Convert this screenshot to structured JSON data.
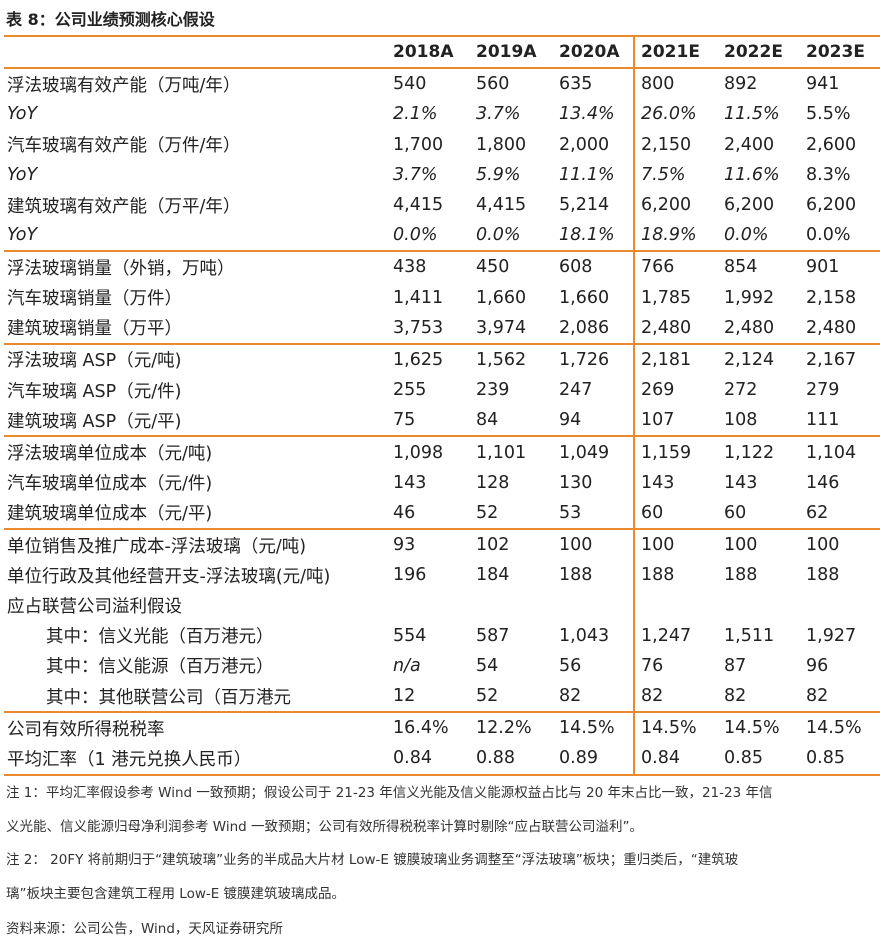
{
  "title": "表 8：公司业绩预测核心假设",
  "columns": [
    "2018A",
    "2019A",
    "2020A",
    "2021E",
    "2022E",
    "2023E"
  ],
  "rows": [
    {
      "label": "浮法玻璃有效产能（万吨/年）",
      "values": [
        "540",
        "560",
        "635",
        "800",
        "892",
        "941"
      ]
    },
    {
      "label": "YoY",
      "values": [
        "2.1%",
        "3.7%",
        "13.4%",
        "26.0%",
        "11.5%",
        "5.5%"
      ]
    },
    {
      "label": "汽车玻璃有效产能（万件/年）",
      "values": [
        "1,700",
        "1,800",
        "2,000",
        "2,150",
        "2,400",
        "2,600"
      ]
    },
    {
      "label": "YoY",
      "values": [
        "3.7%",
        "5.9%",
        "11.1%",
        "7.5%",
        "11.6%",
        "8.3%"
      ]
    },
    {
      "label": "建筑玻璃有效产能（万平/年）",
      "values": [
        "4,415",
        "4,415",
        "5,214",
        "6,200",
        "6,200",
        "6,200"
      ]
    },
    {
      "label": "YoY",
      "values": [
        "0.0%",
        "0.0%",
        "18.1%",
        "18.9%",
        "0.0%",
        "0.0%"
      ]
    },
    {
      "label": "浮法玻璃销量（外销，万吨）",
      "values": [
        "438",
        "450",
        "608",
        "766",
        "854",
        "901"
      ]
    },
    {
      "label": "汽车玻璃销量（万件）",
      "values": [
        "1,411",
        "1,660",
        "1,660",
        "1,785",
        "1,992",
        "2,158"
      ]
    },
    {
      "label": "建筑玻璃销量（万平）",
      "values": [
        "3,753",
        "3,974",
        "2,086",
        "2,480",
        "2,480",
        "2,480"
      ]
    },
    {
      "label": "浮法玻璃 ASP（元/吨)",
      "values": [
        "1,625",
        "1,562",
        "1,726",
        "2,181",
        "2,124",
        "2,167"
      ]
    },
    {
      "label": "汽车玻璃 ASP（元/件)",
      "values": [
        "255",
        "239",
        "247",
        "269",
        "272",
        "279"
      ]
    },
    {
      "label": "建筑玻璃 ASP（元/平)",
      "values": [
        "75",
        "84",
        "94",
        "107",
        "108",
        "111"
      ]
    },
    {
      "label": "浮法玻璃单位成本（元/吨)",
      "values": [
        "1,098",
        "1,101",
        "1,049",
        "1,159",
        "1,122",
        "1,104"
      ]
    },
    {
      "label": "汽车玻璃单位成本（元/件)",
      "values": [
        "143",
        "128",
        "130",
        "143",
        "143",
        "146"
      ]
    },
    {
      "label": "建筑玻璃单位成本（元/平)",
      "values": [
        "46",
        "52",
        "53",
        "60",
        "60",
        "62"
      ]
    },
    {
      "label": "单位销售及推广成本-浮法玻璃（元/吨)",
      "values": [
        "93",
        "102",
        "100",
        "100",
        "100",
        "100"
      ]
    },
    {
      "label": "单位行政及其他经营开支-浮法玻璃(元/吨)",
      "values": [
        "196",
        "184",
        "188",
        "188",
        "188",
        "188"
      ]
    },
    {
      "label": "应占联营公司溢利假设",
      "values": [
        "",
        "",
        "",
        "",
        "",
        ""
      ]
    },
    {
      "label": "其中：信义光能（百万港元）",
      "values": [
        "554",
        "587",
        "1,043",
        "1,247",
        "1,511",
        "1,927"
      ]
    },
    {
      "label": "其中：信义能源（百万港元）",
      "values": [
        "n/a",
        "54",
        "56",
        "76",
        "87",
        "96"
      ]
    },
    {
      "label": "其中：其他联营公司（百万港元",
      "values": [
        "12",
        "52",
        "82",
        "82",
        "82",
        "82"
      ]
    },
    {
      "label": "公司有效所得税税率",
      "values": [
        "16.4%",
        "12.2%",
        "14.5%",
        "14.5%",
        "14.5%",
        "14.5%"
      ]
    },
    {
      "label": "平均汇率（1 港元兑换人民币）",
      "values": [
        "0.84",
        "0.88",
        "0.89",
        "0.84",
        "0.85",
        "0.85"
      ]
    }
  ],
  "notes": [
    "注 1：平均汇率假设参考 Wind 一致预期；假设公司于 21-23 年信义光能及信义能源权益占比与 20 年末占比一致，21-23 年信",
    "义光能、信义能源归母净利润参考 Wind 一致预期；公司有效所得税税率计算时剔除“应占联营公司溢利”。",
    "注 2：  20FY 将前期归于“建筑玻璃”业务的半成品大片材 Low-E 镀膜玻璃业务调整至“浮法玻璃”板块；重归类后，“建筑玻",
    "璃”板块主要包含建筑工程用 Low-E 镀膜建筑玻璃成品。",
    "资料来源：公司公告，Wind，天风证券研究所"
  ],
  "accent_color": "#e98a2e"
}
